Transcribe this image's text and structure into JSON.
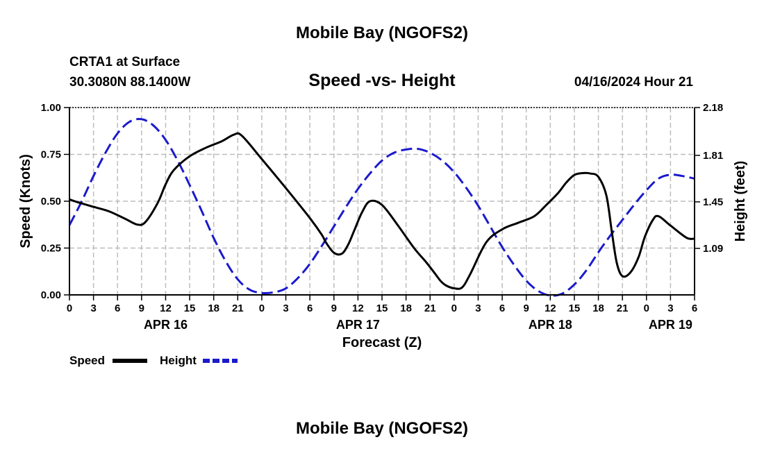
{
  "chart_data": {
    "type": "line",
    "title": "Mobile Bay (NGOFS2)",
    "subtitle": "Speed -vs- Height",
    "station": "CRTA1 at Surface",
    "location": "30.3080N  88.1400W",
    "issued": "04/16/2024 Hour 21",
    "xlabel": "Forecast (Z)",
    "ylabel_left": "Speed (Knots)",
    "ylabel_right": "Height (feet)",
    "x_unit": "hours since 04/16 00Z",
    "xlim": [
      0,
      78
    ],
    "ylim_left": [
      0,
      1
    ],
    "ylim_right": [
      0.73,
      2.18
    ],
    "x_tick_labels": [
      "0",
      "3",
      "6",
      "9",
      "12",
      "15",
      "18",
      "21",
      "0",
      "3",
      "6",
      "9",
      "12",
      "15",
      "18",
      "21",
      "0",
      "3",
      "6",
      "9",
      "12",
      "15",
      "18",
      "21",
      "0",
      "3",
      "6"
    ],
    "y_ticks_left": [
      "0.00",
      "0.25",
      "0.50",
      "0.75",
      "1.00"
    ],
    "y_ticks_right": [
      "1.09",
      "1.45",
      "1.81",
      "2.18"
    ],
    "date_labels": [
      {
        "label": "APR 16",
        "hour": 12
      },
      {
        "label": "APR 17",
        "hour": 36
      },
      {
        "label": "APR 18",
        "hour": 60
      },
      {
        "label": "APR 19",
        "hour": 75
      }
    ],
    "grid": true,
    "legend_position": "bottom-left",
    "series": [
      {
        "name": "Speed",
        "axis": "left",
        "color": "#000000",
        "style": "solid",
        "x": [
          0,
          1,
          3,
          5,
          7,
          8.5,
          9.5,
          11,
          12,
          13,
          15,
          17,
          19,
          20.5,
          21.5,
          24,
          27,
          30,
          31.5,
          32,
          33,
          34,
          34.8,
          35.5,
          36.5,
          37.5,
          39,
          41,
          43,
          44.5,
          45.5,
          46.3,
          47,
          48,
          49,
          50,
          52,
          54,
          56,
          58,
          59.5,
          61,
          62,
          63,
          64,
          65,
          66,
          67,
          67.7,
          68.3,
          69,
          70,
          71,
          71.8,
          72.8,
          73.5,
          75,
          77,
          78
        ],
        "values": [
          0.51,
          0.495,
          0.47,
          0.445,
          0.405,
          0.375,
          0.39,
          0.49,
          0.59,
          0.665,
          0.74,
          0.785,
          0.82,
          0.855,
          0.85,
          0.725,
          0.57,
          0.41,
          0.32,
          0.28,
          0.225,
          0.22,
          0.27,
          0.34,
          0.44,
          0.5,
          0.48,
          0.37,
          0.25,
          0.175,
          0.12,
          0.075,
          0.05,
          0.035,
          0.04,
          0.11,
          0.28,
          0.35,
          0.385,
          0.42,
          0.48,
          0.545,
          0.6,
          0.64,
          0.65,
          0.648,
          0.63,
          0.53,
          0.33,
          0.17,
          0.1,
          0.12,
          0.2,
          0.31,
          0.4,
          0.42,
          0.37,
          0.305,
          0.3
        ]
      },
      {
        "name": "Height",
        "axis": "right",
        "color": "#1a1acc",
        "style": "dashed",
        "x": [
          0,
          1.5,
          3,
          4.5,
          6,
          7.5,
          9,
          10.5,
          12,
          13.5,
          15,
          16.5,
          18,
          19.5,
          21,
          22.5,
          24,
          25.5,
          27,
          28.5,
          30,
          31.5,
          33,
          34.5,
          36,
          37.5,
          39,
          40.5,
          42,
          43.5,
          45,
          46.5,
          48,
          49.5,
          51,
          52.5,
          54,
          55.5,
          57,
          58.5,
          60,
          61.5,
          63,
          64.5,
          66,
          67.5,
          69,
          70.5,
          72,
          73.5,
          75,
          76.5,
          78
        ],
        "values": [
          1.27,
          1.45,
          1.65,
          1.83,
          1.98,
          2.07,
          2.09,
          2.04,
          1.93,
          1.77,
          1.58,
          1.38,
          1.17,
          0.99,
          0.85,
          0.77,
          0.745,
          0.75,
          0.78,
          0.86,
          0.97,
          1.11,
          1.26,
          1.41,
          1.55,
          1.67,
          1.77,
          1.83,
          1.855,
          1.86,
          1.83,
          1.77,
          1.68,
          1.56,
          1.42,
          1.26,
          1.1,
          0.96,
          0.84,
          0.76,
          0.725,
          0.74,
          0.81,
          0.92,
          1.06,
          1.19,
          1.31,
          1.43,
          1.54,
          1.63,
          1.66,
          1.65,
          1.63
        ]
      }
    ]
  },
  "footer_title": "Mobile Bay (NGOFS2)"
}
